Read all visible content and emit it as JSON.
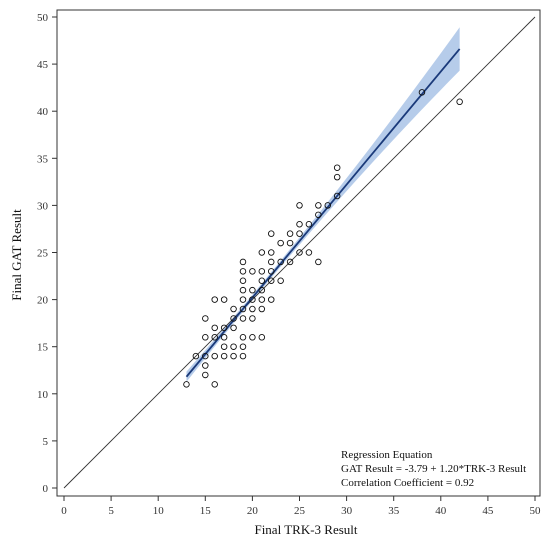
{
  "chart_data": {
    "type": "scatter",
    "xlabel": "Final TRK-3 Result",
    "ylabel": "Final GAT Result",
    "xlim": [
      0,
      50
    ],
    "ylim": [
      0,
      50
    ],
    "xticks": [
      0,
      5,
      10,
      15,
      20,
      25,
      30,
      35,
      40,
      45,
      50
    ],
    "yticks": [
      0,
      5,
      10,
      15,
      20,
      25,
      30,
      35,
      40,
      45,
      50
    ],
    "grid": false,
    "points": [
      [
        13,
        11
      ],
      [
        14,
        14
      ],
      [
        15,
        12
      ],
      [
        15,
        13
      ],
      [
        15,
        14
      ],
      [
        15,
        16
      ],
      [
        15,
        18
      ],
      [
        16,
        11
      ],
      [
        16,
        14
      ],
      [
        16,
        16
      ],
      [
        16,
        17
      ],
      [
        16,
        20
      ],
      [
        17,
        14
      ],
      [
        17,
        15
      ],
      [
        17,
        16
      ],
      [
        17,
        17
      ],
      [
        17,
        20
      ],
      [
        18,
        14
      ],
      [
        18,
        15
      ],
      [
        18,
        17
      ],
      [
        18,
        18
      ],
      [
        18,
        19
      ],
      [
        19,
        14
      ],
      [
        19,
        15
      ],
      [
        19,
        16
      ],
      [
        19,
        18
      ],
      [
        19,
        19
      ],
      [
        19,
        20
      ],
      [
        19,
        21
      ],
      [
        19,
        22
      ],
      [
        19,
        23
      ],
      [
        19,
        24
      ],
      [
        20,
        16
      ],
      [
        20,
        18
      ],
      [
        20,
        19
      ],
      [
        20,
        20
      ],
      [
        20,
        21
      ],
      [
        20,
        23
      ],
      [
        21,
        16
      ],
      [
        21,
        19
      ],
      [
        21,
        20
      ],
      [
        21,
        21
      ],
      [
        21,
        22
      ],
      [
        21,
        23
      ],
      [
        21,
        25
      ],
      [
        22,
        20
      ],
      [
        22,
        22
      ],
      [
        22,
        23
      ],
      [
        22,
        24
      ],
      [
        22,
        25
      ],
      [
        22,
        27
      ],
      [
        23,
        22
      ],
      [
        23,
        24
      ],
      [
        23,
        26
      ],
      [
        24,
        24
      ],
      [
        24,
        26
      ],
      [
        24,
        27
      ],
      [
        25,
        25
      ],
      [
        25,
        27
      ],
      [
        25,
        28
      ],
      [
        25,
        30
      ],
      [
        26,
        25
      ],
      [
        26,
        28
      ],
      [
        27,
        24
      ],
      [
        27,
        29
      ],
      [
        27,
        30
      ],
      [
        28,
        30
      ],
      [
        29,
        31
      ],
      [
        29,
        33
      ],
      [
        29,
        34
      ],
      [
        38,
        42
      ],
      [
        42,
        41
      ]
    ],
    "regression": {
      "intercept": -3.79,
      "slope": 1.2,
      "x_range": [
        13,
        42
      ]
    },
    "confidence_band_halfwidth": {
      "at_min_x": 0.55,
      "at_mean_x": 0.3,
      "at_max_x": 2.3,
      "mean_x": 20.5
    },
    "identity_line": true,
    "annotations": [
      "Regression Equation",
      "GAT Result = -3.79 +  1.20*TRK-3 Result",
      "Correlation Coefficient = 0.92"
    ],
    "colors": {
      "fit_line": "#1a3a7a",
      "band": "#a9c3e6",
      "marker": "#111111",
      "identity": "#333333"
    }
  }
}
